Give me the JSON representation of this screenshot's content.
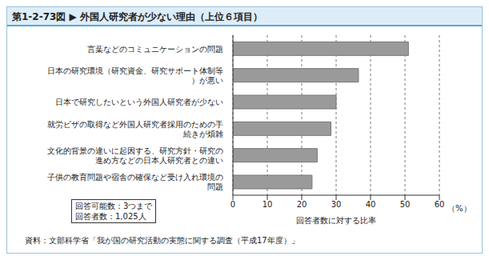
{
  "chart_data": {
    "type": "bar",
    "orientation": "horizontal",
    "title": "第1-2-73図 ▶ 外国人研究者が少ない理由（上位６項目）",
    "categories": [
      "言葉などのコミュニケーションの問題",
      "日本の研究環境（研究資金、研究サポート体制等）が悪い",
      "日本で研究したいという外国人研究者が少ない",
      "就労ビザの取得など外国人研究者採用のための手続きが煩雑",
      "文化的背景の違いに起因する、研究方針・研究の進め方などの日本人研究者との違い",
      "子供の教育問題や宿舎の確保など受け入れ環境の問題"
    ],
    "values": [
      51,
      36.5,
      30,
      28.5,
      24.5,
      23
    ],
    "color": "#9a9a9a",
    "xlim": [
      0,
      60
    ],
    "xticks": [
      0,
      10,
      20,
      30,
      40,
      50,
      60
    ],
    "xlabel": "回答者数に対する比率",
    "x_unit": "（%）",
    "grid": true,
    "annotations": [
      "回答可能数：3つまで",
      "回答者数：1,025人"
    ],
    "source": "資料：文部科学省「我が国の研究活動の実態に関する調査（平成17年度）」"
  }
}
